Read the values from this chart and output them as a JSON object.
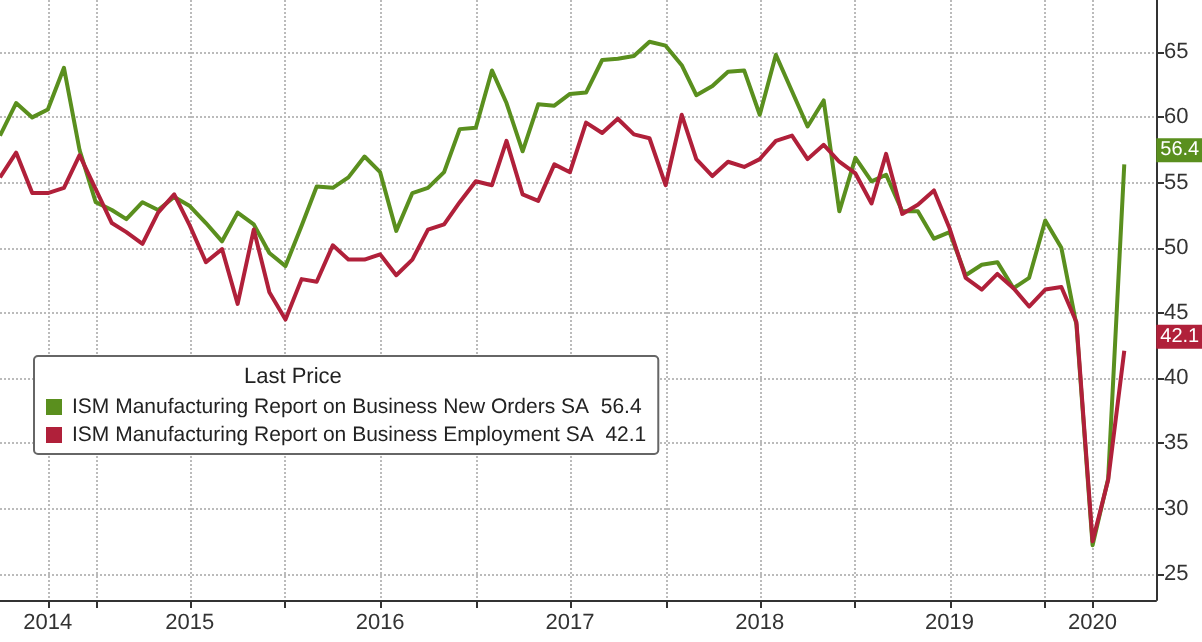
{
  "chart_data": {
    "type": "line",
    "legend_title": "Last Price",
    "legend": "left",
    "grid": true,
    "marker": "none",
    "line_style": "solid",
    "x": [
      "2014-07",
      "2014-08",
      "2014-09",
      "2014-10",
      "2014-11",
      "2014-12",
      "2015-01",
      "2015-02",
      "2015-03",
      "2015-04",
      "2015-05",
      "2015-06",
      "2015-07",
      "2015-08",
      "2015-09",
      "2015-10",
      "2015-11",
      "2015-12",
      "2016-01",
      "2016-02",
      "2016-03",
      "2016-04",
      "2016-05",
      "2016-06",
      "2016-07",
      "2016-08",
      "2016-09",
      "2016-10",
      "2016-11",
      "2016-12",
      "2017-01",
      "2017-02",
      "2017-03",
      "2017-04",
      "2017-05",
      "2017-06",
      "2017-07",
      "2017-08",
      "2017-09",
      "2017-10",
      "2017-11",
      "2017-12",
      "2018-01",
      "2018-02",
      "2018-03",
      "2018-04",
      "2018-05",
      "2018-06",
      "2018-07",
      "2018-08",
      "2018-09",
      "2018-10",
      "2018-11",
      "2018-12",
      "2019-01",
      "2019-02",
      "2019-03",
      "2019-04",
      "2019-05",
      "2019-06",
      "2019-07",
      "2019-08",
      "2019-09",
      "2019-10",
      "2019-11",
      "2019-12",
      "2020-01",
      "2020-02",
      "2020-03",
      "2020-04",
      "2020-05",
      "2020-06"
    ],
    "series": [
      {
        "name": "ISM Manufacturing Report on Business New Orders SA",
        "color": "#5a8f1e",
        "values": [
          58.6,
          61.1,
          60.0,
          60.6,
          63.8,
          57.5,
          53.5,
          52.9,
          52.2,
          53.5,
          52.9,
          53.9,
          53.2,
          51.9,
          50.5,
          52.7,
          51.8,
          49.6,
          48.6,
          51.7,
          54.7,
          54.6,
          55.4,
          57.0,
          55.8,
          51.3,
          54.2,
          54.6,
          55.8,
          59.1,
          59.2,
          63.6,
          61.1,
          57.4,
          61.0,
          60.9,
          61.8,
          61.9,
          64.4,
          64.5,
          64.7,
          65.8,
          65.5,
          64.0,
          61.7,
          62.4,
          63.5,
          63.6,
          60.2,
          64.8,
          62.0,
          59.3,
          61.3,
          52.8,
          56.9,
          55.1,
          55.6,
          52.8,
          52.8,
          50.7,
          51.2,
          47.9,
          48.7,
          48.9,
          46.9,
          47.7,
          52.1,
          50.0,
          44.1,
          27.2,
          32.3,
          56.4
        ],
        "value_labels": [
          null,
          null,
          null,
          null,
          null,
          null,
          null,
          null,
          null,
          null,
          null,
          null,
          null,
          null,
          null,
          null,
          null,
          null,
          null,
          null,
          null,
          null,
          null,
          null,
          null,
          null,
          null,
          null,
          null,
          null,
          null,
          null,
          null,
          null,
          null,
          null,
          null,
          null,
          null,
          null,
          null,
          null,
          null,
          null,
          null,
          null,
          null,
          null,
          null,
          null,
          null,
          null,
          null,
          null,
          null,
          null,
          null,
          null,
          null,
          null,
          null,
          null,
          null,
          null,
          null,
          null,
          null,
          null,
          null,
          null,
          null,
          "56.4"
        ]
      },
      {
        "name": "ISM Manufacturing Report on Business Employment SA",
        "color": "#b0203a",
        "values": [
          55.4,
          57.3,
          54.2,
          54.2,
          54.6,
          57.1,
          54.5,
          51.9,
          51.2,
          50.3,
          52.7,
          54.1,
          51.7,
          48.9,
          49.9,
          45.7,
          51.4,
          46.6,
          44.5,
          47.6,
          47.4,
          50.2,
          49.1,
          49.1,
          49.5,
          47.9,
          49.1,
          51.4,
          51.8,
          53.5,
          55.1,
          54.8,
          58.2,
          54.1,
          53.6,
          56.4,
          55.8,
          59.6,
          58.8,
          59.9,
          58.7,
          58.4,
          54.8,
          60.2,
          56.8,
          55.5,
          56.6,
          56.2,
          56.8,
          58.2,
          58.6,
          56.8,
          57.9,
          56.6,
          55.7,
          53.4,
          57.2,
          52.6,
          53.3,
          54.4,
          51.5,
          47.7,
          46.8,
          48.0,
          46.9,
          45.5,
          46.8,
          47.0,
          44.3,
          27.5,
          32.2,
          42.1
        ],
        "value_labels": [
          null,
          null,
          null,
          null,
          null,
          null,
          null,
          null,
          null,
          null,
          null,
          null,
          null,
          null,
          null,
          null,
          null,
          null,
          null,
          null,
          null,
          null,
          null,
          null,
          null,
          null,
          null,
          null,
          null,
          null,
          null,
          null,
          null,
          null,
          null,
          null,
          null,
          null,
          null,
          null,
          null,
          null,
          null,
          null,
          null,
          null,
          null,
          null,
          null,
          null,
          null,
          null,
          null,
          null,
          null,
          null,
          null,
          null,
          null,
          null,
          null,
          null,
          null,
          null,
          null,
          null,
          null,
          null,
          null,
          null,
          null,
          "42.1"
        ]
      }
    ],
    "xlim": [
      "2014-07",
      "2020-08"
    ],
    "xticks": [
      {
        "value": "2014-10",
        "label": "2014"
      },
      {
        "value": "2015-01",
        "label": null
      },
      {
        "value": "2015-07",
        "label": "2015"
      },
      {
        "value": "2016-01",
        "label": null
      },
      {
        "value": "2016-07",
        "label": "2016"
      },
      {
        "value": "2017-01",
        "label": null
      },
      {
        "value": "2017-07",
        "label": "2017"
      },
      {
        "value": "2018-01",
        "label": null
      },
      {
        "value": "2018-07",
        "label": "2018"
      },
      {
        "value": "2019-01",
        "label": null
      },
      {
        "value": "2019-07",
        "label": "2019"
      },
      {
        "value": "2020-01",
        "label": null
      },
      {
        "value": "2020-04",
        "label": "2020"
      }
    ],
    "ylim": [
      23,
      69
    ],
    "yticks": [
      25,
      30,
      35,
      40,
      45,
      50,
      55,
      60,
      65
    ]
  }
}
